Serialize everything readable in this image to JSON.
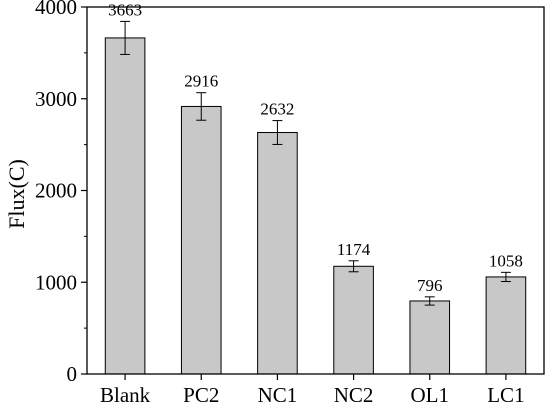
{
  "chart_data": {
    "type": "bar",
    "categories": [
      "Blank",
      "PC2",
      "NC1",
      "NC2",
      "OL1",
      "LC1"
    ],
    "values": [
      3663,
      2916,
      2632,
      1174,
      796,
      1058
    ],
    "errors": [
      180,
      150,
      130,
      60,
      45,
      50
    ],
    "data_labels": [
      "3663",
      "2916",
      "2632",
      "1174",
      "796",
      "1058"
    ],
    "title": "",
    "xlabel": "",
    "ylabel": "Flux(C)",
    "ylim": [
      0,
      4000
    ],
    "yticks": [
      0,
      1000,
      2000,
      3000,
      4000
    ],
    "ytick_labels": [
      "0",
      "1000",
      "2000",
      "3000",
      "4000"
    ],
    "grid": false,
    "legend": "none",
    "colors": {
      "bar_fill": "#c8c8c8",
      "bar_stroke": "#000000",
      "axis": "#000000"
    }
  }
}
